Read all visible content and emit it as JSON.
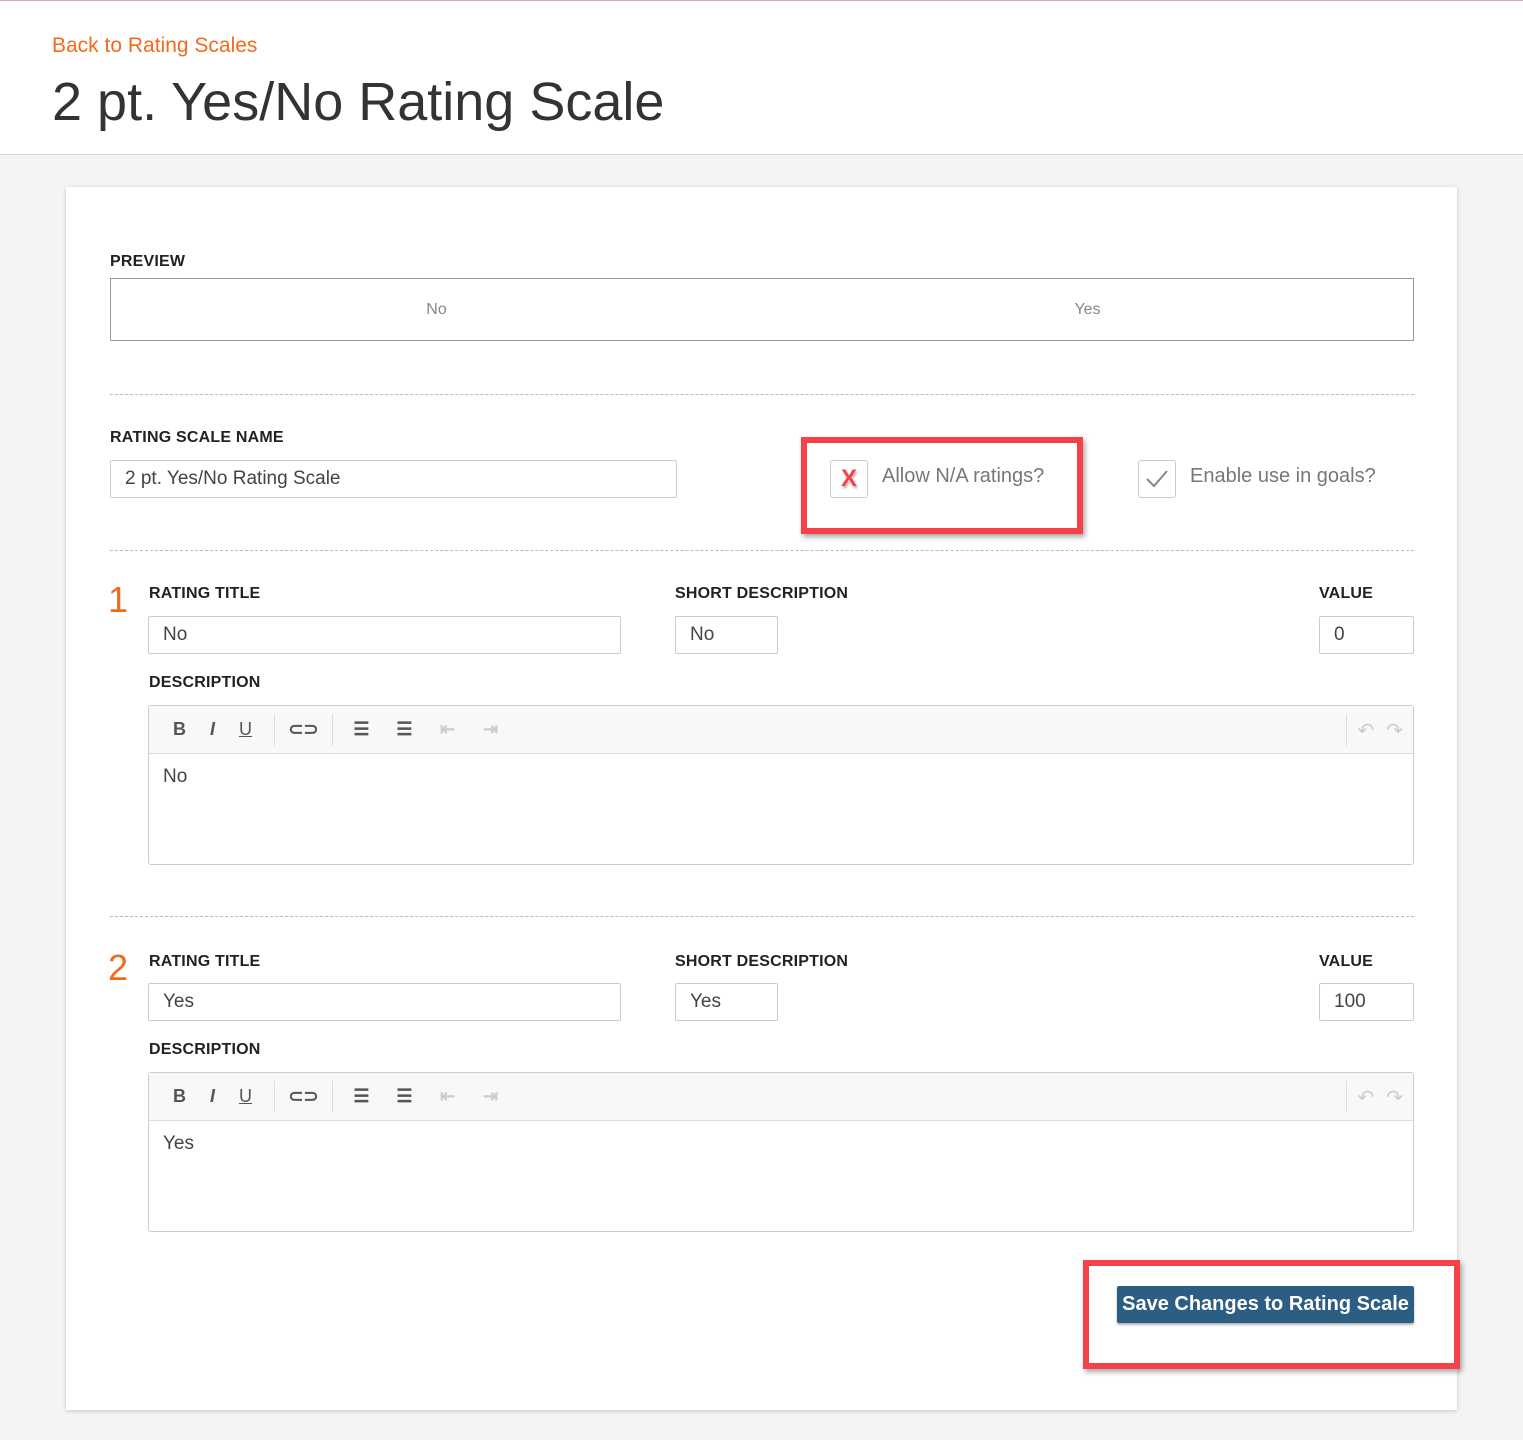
{
  "header": {
    "back_link": "Back to Rating Scales",
    "title": "2 pt. Yes/No Rating Scale"
  },
  "preview": {
    "label": "PREVIEW",
    "items": [
      "No",
      "Yes"
    ]
  },
  "scale": {
    "name_label": "RATING SCALE NAME",
    "name_value": "2 pt. Yes/No Rating Scale",
    "allow_na": {
      "label": "Allow N/A ratings?",
      "checked": false,
      "mark": "X"
    },
    "enable_goals": {
      "label": "Enable use in goals?",
      "checked": true
    }
  },
  "labels": {
    "rating_title": "RATING TITLE",
    "short_description": "SHORT DESCRIPTION",
    "value": "VALUE",
    "description": "DESCRIPTION"
  },
  "toolbar": {
    "bold": "B",
    "italic": "I",
    "underline": "U"
  },
  "ratings": [
    {
      "number": "1",
      "title": "No",
      "short_description": "No",
      "value": "0",
      "description": "No"
    },
    {
      "number": "2",
      "title": "Yes",
      "short_description": "Yes",
      "value": "100",
      "description": "Yes"
    }
  ],
  "save_button": "Save Changes to Rating Scale",
  "colors": {
    "accent": "#f26b1d",
    "primary": "#2c5d82",
    "highlight": "#f5424a"
  }
}
